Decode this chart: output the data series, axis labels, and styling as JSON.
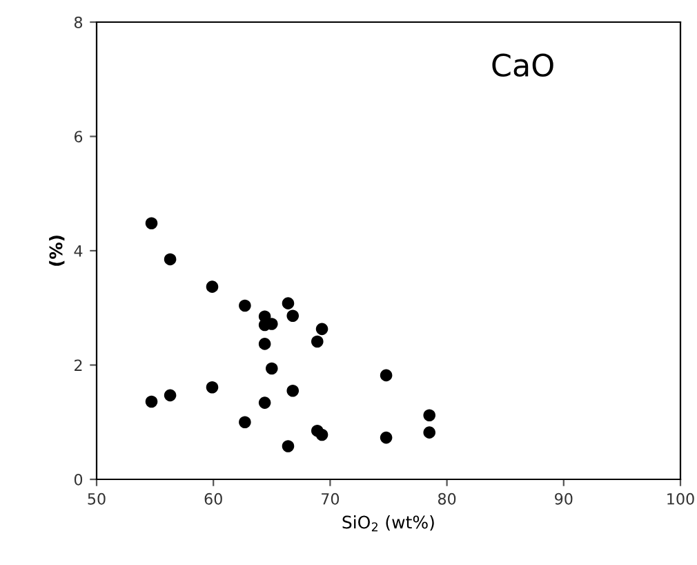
{
  "chart_data": {
    "type": "scatter",
    "xlabel": "SiO$_{2}$ (wt%)",
    "ylabel": "(%)",
    "annotations": [
      "CaO"
    ],
    "x": [
      54.7,
      56.3,
      59.9,
      62.7,
      64.4,
      64.4,
      65.0,
      66.4,
      66.8,
      69.3,
      68.9,
      64.4,
      65.0,
      74.8,
      54.7,
      56.3,
      59.9,
      66.8,
      64.4,
      62.7,
      68.9,
      69.3,
      66.4,
      74.8,
      78.5,
      78.5
    ],
    "values": [
      4.48,
      3.85,
      3.37,
      3.04,
      2.85,
      2.7,
      2.72,
      3.08,
      2.86,
      2.63,
      2.41,
      2.37,
      1.94,
      1.82,
      1.36,
      1.47,
      1.61,
      1.55,
      1.34,
      1.0,
      0.85,
      0.78,
      0.58,
      0.73,
      1.12,
      0.82
    ],
    "color": "#000000",
    "marker": "circle",
    "grid": false,
    "legend": false,
    "xlim": [
      50,
      100
    ],
    "xticks": [
      50,
      60,
      70,
      80,
      90,
      100
    ],
    "ylim": [
      0,
      8
    ],
    "yticks": [
      0,
      2,
      4,
      6,
      8
    ]
  }
}
